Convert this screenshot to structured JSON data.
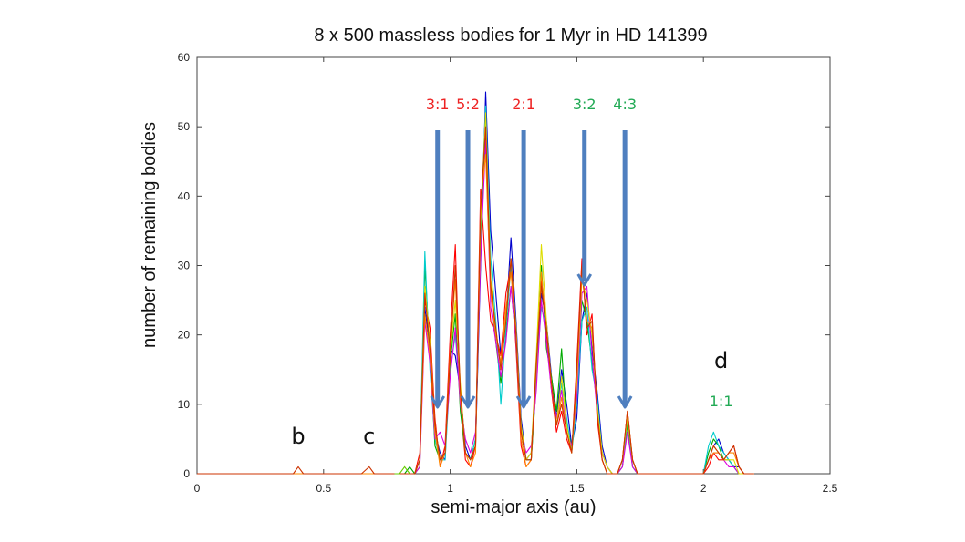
{
  "chart_data": {
    "type": "line",
    "title": "8 x 500 massless bodies for 1 Myr in HD 141399",
    "xlabel": "semi-major axis (au)",
    "ylabel": "number of remaining bodies",
    "xlim": [
      0,
      2.5
    ],
    "ylim": [
      0,
      60
    ],
    "xticks": [
      "0",
      "0.5",
      "1",
      "1.5",
      "2",
      "2.5"
    ],
    "yticks": [
      "0",
      "10",
      "20",
      "30",
      "40",
      "50",
      "60"
    ],
    "grid": false,
    "x": [
      0,
      0.05,
      0.1,
      0.15,
      0.2,
      0.25,
      0.3,
      0.35,
      0.38,
      0.4,
      0.42,
      0.45,
      0.5,
      0.55,
      0.6,
      0.65,
      0.68,
      0.7,
      0.72,
      0.75,
      0.8,
      0.82,
      0.84,
      0.86,
      0.88,
      0.9,
      0.92,
      0.94,
      0.96,
      0.98,
      1.0,
      1.02,
      1.04,
      1.06,
      1.08,
      1.1,
      1.12,
      1.14,
      1.16,
      1.18,
      1.2,
      1.22,
      1.24,
      1.26,
      1.28,
      1.3,
      1.32,
      1.34,
      1.36,
      1.38,
      1.4,
      1.42,
      1.44,
      1.46,
      1.48,
      1.5,
      1.52,
      1.54,
      1.56,
      1.58,
      1.6,
      1.62,
      1.64,
      1.66,
      1.68,
      1.7,
      1.72,
      1.74,
      1.76,
      1.78,
      1.8,
      1.85,
      1.9,
      1.95,
      2.0,
      2.02,
      2.04,
      2.06,
      2.08,
      2.1,
      2.12,
      2.14,
      2.16,
      2.18,
      2.2
    ],
    "series": [
      {
        "color": "#0000cc",
        "values": [
          0,
          0,
          0,
          0,
          0,
          0,
          0,
          0,
          0,
          0,
          0,
          0,
          0,
          0,
          0,
          0,
          0,
          0,
          0,
          0,
          0,
          0,
          0,
          0,
          2,
          24,
          18,
          6,
          3,
          2,
          18,
          17,
          12,
          4,
          2,
          4,
          30,
          55,
          35,
          26,
          17,
          22,
          34,
          22,
          8,
          2,
          3,
          15,
          26,
          22,
          14,
          8,
          15,
          10,
          4,
          8,
          22,
          26,
          18,
          12,
          4,
          1,
          0,
          0,
          2,
          8,
          2,
          0,
          0,
          0,
          0,
          0,
          0,
          0,
          0,
          2,
          4,
          5,
          3,
          2,
          1,
          1,
          0,
          0,
          0
        ]
      },
      {
        "color": "#ff0000",
        "values": [
          0,
          0,
          0,
          0,
          0,
          0,
          0,
          0,
          0,
          0,
          0,
          0,
          0,
          0,
          0,
          0,
          0,
          0,
          0,
          0,
          0,
          0,
          0,
          0,
          3,
          25,
          21,
          8,
          1,
          4,
          20,
          33,
          10,
          2,
          1,
          4,
          41,
          30,
          22,
          20,
          17,
          26,
          30,
          18,
          4,
          1,
          2,
          16,
          28,
          20,
          12,
          6,
          9,
          5,
          3,
          16,
          31,
          20,
          23,
          8,
          2,
          0,
          0,
          0,
          2,
          9,
          2,
          0,
          0,
          0,
          0,
          0,
          0,
          0,
          0,
          1,
          3,
          2,
          2,
          3,
          4,
          1,
          0,
          0,
          0
        ]
      },
      {
        "color": "#00aa00",
        "values": [
          0,
          0,
          0,
          0,
          0,
          0,
          0,
          0,
          0,
          0,
          0,
          0,
          0,
          0,
          0,
          0,
          0,
          0,
          0,
          0,
          0,
          0,
          1,
          0,
          1,
          30,
          17,
          4,
          2,
          3,
          16,
          23,
          9,
          3,
          2,
          5,
          33,
          50,
          27,
          19,
          13,
          20,
          27,
          19,
          6,
          2,
          2,
          13,
          30,
          18,
          14,
          9,
          18,
          7,
          4,
          12,
          25,
          22,
          16,
          10,
          3,
          1,
          0,
          0,
          1,
          7,
          1,
          0,
          0,
          0,
          0,
          0,
          0,
          0,
          0,
          3,
          5,
          4,
          2,
          2,
          1,
          0,
          0,
          0,
          0
        ]
      },
      {
        "color": "#00cccc",
        "values": [
          0,
          0,
          0,
          0,
          0,
          0,
          0,
          0,
          0,
          0,
          0,
          0,
          0,
          0,
          0,
          0,
          0,
          0,
          0,
          0,
          0,
          0,
          0,
          0,
          2,
          32,
          15,
          5,
          2,
          2,
          15,
          20,
          11,
          3,
          2,
          5,
          35,
          53,
          31,
          22,
          10,
          21,
          30,
          20,
          7,
          2,
          2,
          14,
          24,
          21,
          13,
          7,
          13,
          8,
          3,
          10,
          22,
          24,
          15,
          11,
          3,
          1,
          0,
          0,
          1,
          8,
          1,
          0,
          0,
          0,
          0,
          0,
          0,
          0,
          0,
          4,
          6,
          4,
          3,
          2,
          1,
          0,
          0,
          0,
          0
        ]
      },
      {
        "color": "#dd00dd",
        "values": [
          0,
          0,
          0,
          0,
          0,
          0,
          0,
          0,
          0,
          0,
          0,
          0,
          0,
          0,
          0,
          0,
          0,
          0,
          0,
          0,
          0,
          0,
          0,
          0,
          1,
          22,
          16,
          5,
          6,
          4,
          14,
          21,
          10,
          5,
          3,
          6,
          31,
          48,
          24,
          19,
          14,
          19,
          27,
          19,
          6,
          3,
          4,
          12,
          25,
          19,
          12,
          8,
          12,
          6,
          4,
          11,
          26,
          27,
          17,
          9,
          3,
          1,
          0,
          0,
          1,
          6,
          1,
          0,
          0,
          0,
          0,
          0,
          0,
          0,
          0,
          2,
          3,
          3,
          2,
          1,
          1,
          0,
          0,
          0,
          0
        ]
      },
      {
        "color": "#dddd00",
        "values": [
          0,
          0,
          0,
          0,
          0,
          0,
          0,
          0,
          0,
          0,
          0,
          0,
          0,
          0,
          0,
          0,
          0,
          0,
          0,
          0,
          0,
          0,
          0,
          0,
          2,
          27,
          19,
          7,
          2,
          3,
          17,
          25,
          13,
          3,
          2,
          4,
          36,
          52,
          28,
          21,
          15,
          23,
          31,
          21,
          7,
          2,
          3,
          17,
          33,
          22,
          13,
          7,
          14,
          7,
          3,
          13,
          28,
          25,
          20,
          10,
          3,
          1,
          0,
          0,
          2,
          8,
          2,
          0,
          0,
          0,
          0,
          0,
          0,
          0,
          0,
          2,
          4,
          3,
          2,
          2,
          2,
          0,
          0,
          0,
          0
        ]
      },
      {
        "color": "#ff8800",
        "values": [
          0,
          0,
          0,
          0,
          0,
          0,
          0,
          0,
          0,
          0,
          0,
          0,
          0,
          0,
          0,
          0,
          0,
          0,
          0,
          0,
          0,
          0,
          0,
          0,
          2,
          23,
          17,
          6,
          1,
          3,
          18,
          28,
          11,
          3,
          1,
          3,
          39,
          46,
          26,
          20,
          16,
          24,
          29,
          20,
          5,
          1,
          2,
          15,
          29,
          21,
          13,
          7,
          11,
          6,
          3,
          14,
          29,
          22,
          21,
          9,
          2,
          0,
          0,
          0,
          2,
          9,
          2,
          0,
          0,
          0,
          0,
          0,
          0,
          0,
          0,
          2,
          3,
          3,
          2,
          3,
          3,
          1,
          0,
          0,
          0
        ]
      },
      {
        "color": "#cc3300",
        "values": [
          0,
          0,
          0,
          0,
          0,
          0,
          0,
          0,
          0,
          1,
          0,
          0,
          0,
          0,
          0,
          0,
          1,
          0,
          0,
          0,
          0,
          0,
          0,
          0,
          2,
          26,
          18,
          7,
          2,
          3,
          17,
          30,
          12,
          3,
          2,
          4,
          38,
          50,
          27,
          21,
          15,
          22,
          31,
          20,
          6,
          2,
          2,
          16,
          27,
          21,
          13,
          7,
          10,
          6,
          3,
          15,
          30,
          21,
          22,
          9,
          2,
          0,
          0,
          0,
          2,
          9,
          2,
          0,
          0,
          0,
          0,
          0,
          0,
          0,
          0,
          2,
          4,
          3,
          2,
          3,
          4,
          1,
          0,
          0,
          0
        ]
      }
    ],
    "extra_series": [
      {
        "color": "#66cc00",
        "x": [
          0.78,
          0.8,
          0.82,
          0.84
        ],
        "values": [
          0,
          0,
          1,
          0
        ]
      }
    ],
    "resonance_arrows": [
      {
        "label": "3:1",
        "x": 0.95,
        "color": "#ee2222"
      },
      {
        "label": "5:2",
        "x": 1.07,
        "color": "#ee2222"
      },
      {
        "label": "2:1",
        "x": 1.29,
        "color": "#ee2222"
      },
      {
        "label": "3:2",
        "x": 1.53,
        "color": "#22aa55"
      },
      {
        "label": "4:3",
        "x": 1.69,
        "color": "#22aa55"
      }
    ],
    "arrow_color": "#4f7fbf",
    "planet_labels": [
      {
        "label": "b",
        "x": 0.4
      },
      {
        "label": "c",
        "x": 0.68
      },
      {
        "label": "d",
        "x": 2.07
      }
    ],
    "extra_labels": [
      {
        "label": "1:1",
        "x": 2.07,
        "color": "#22aa55"
      }
    ]
  }
}
